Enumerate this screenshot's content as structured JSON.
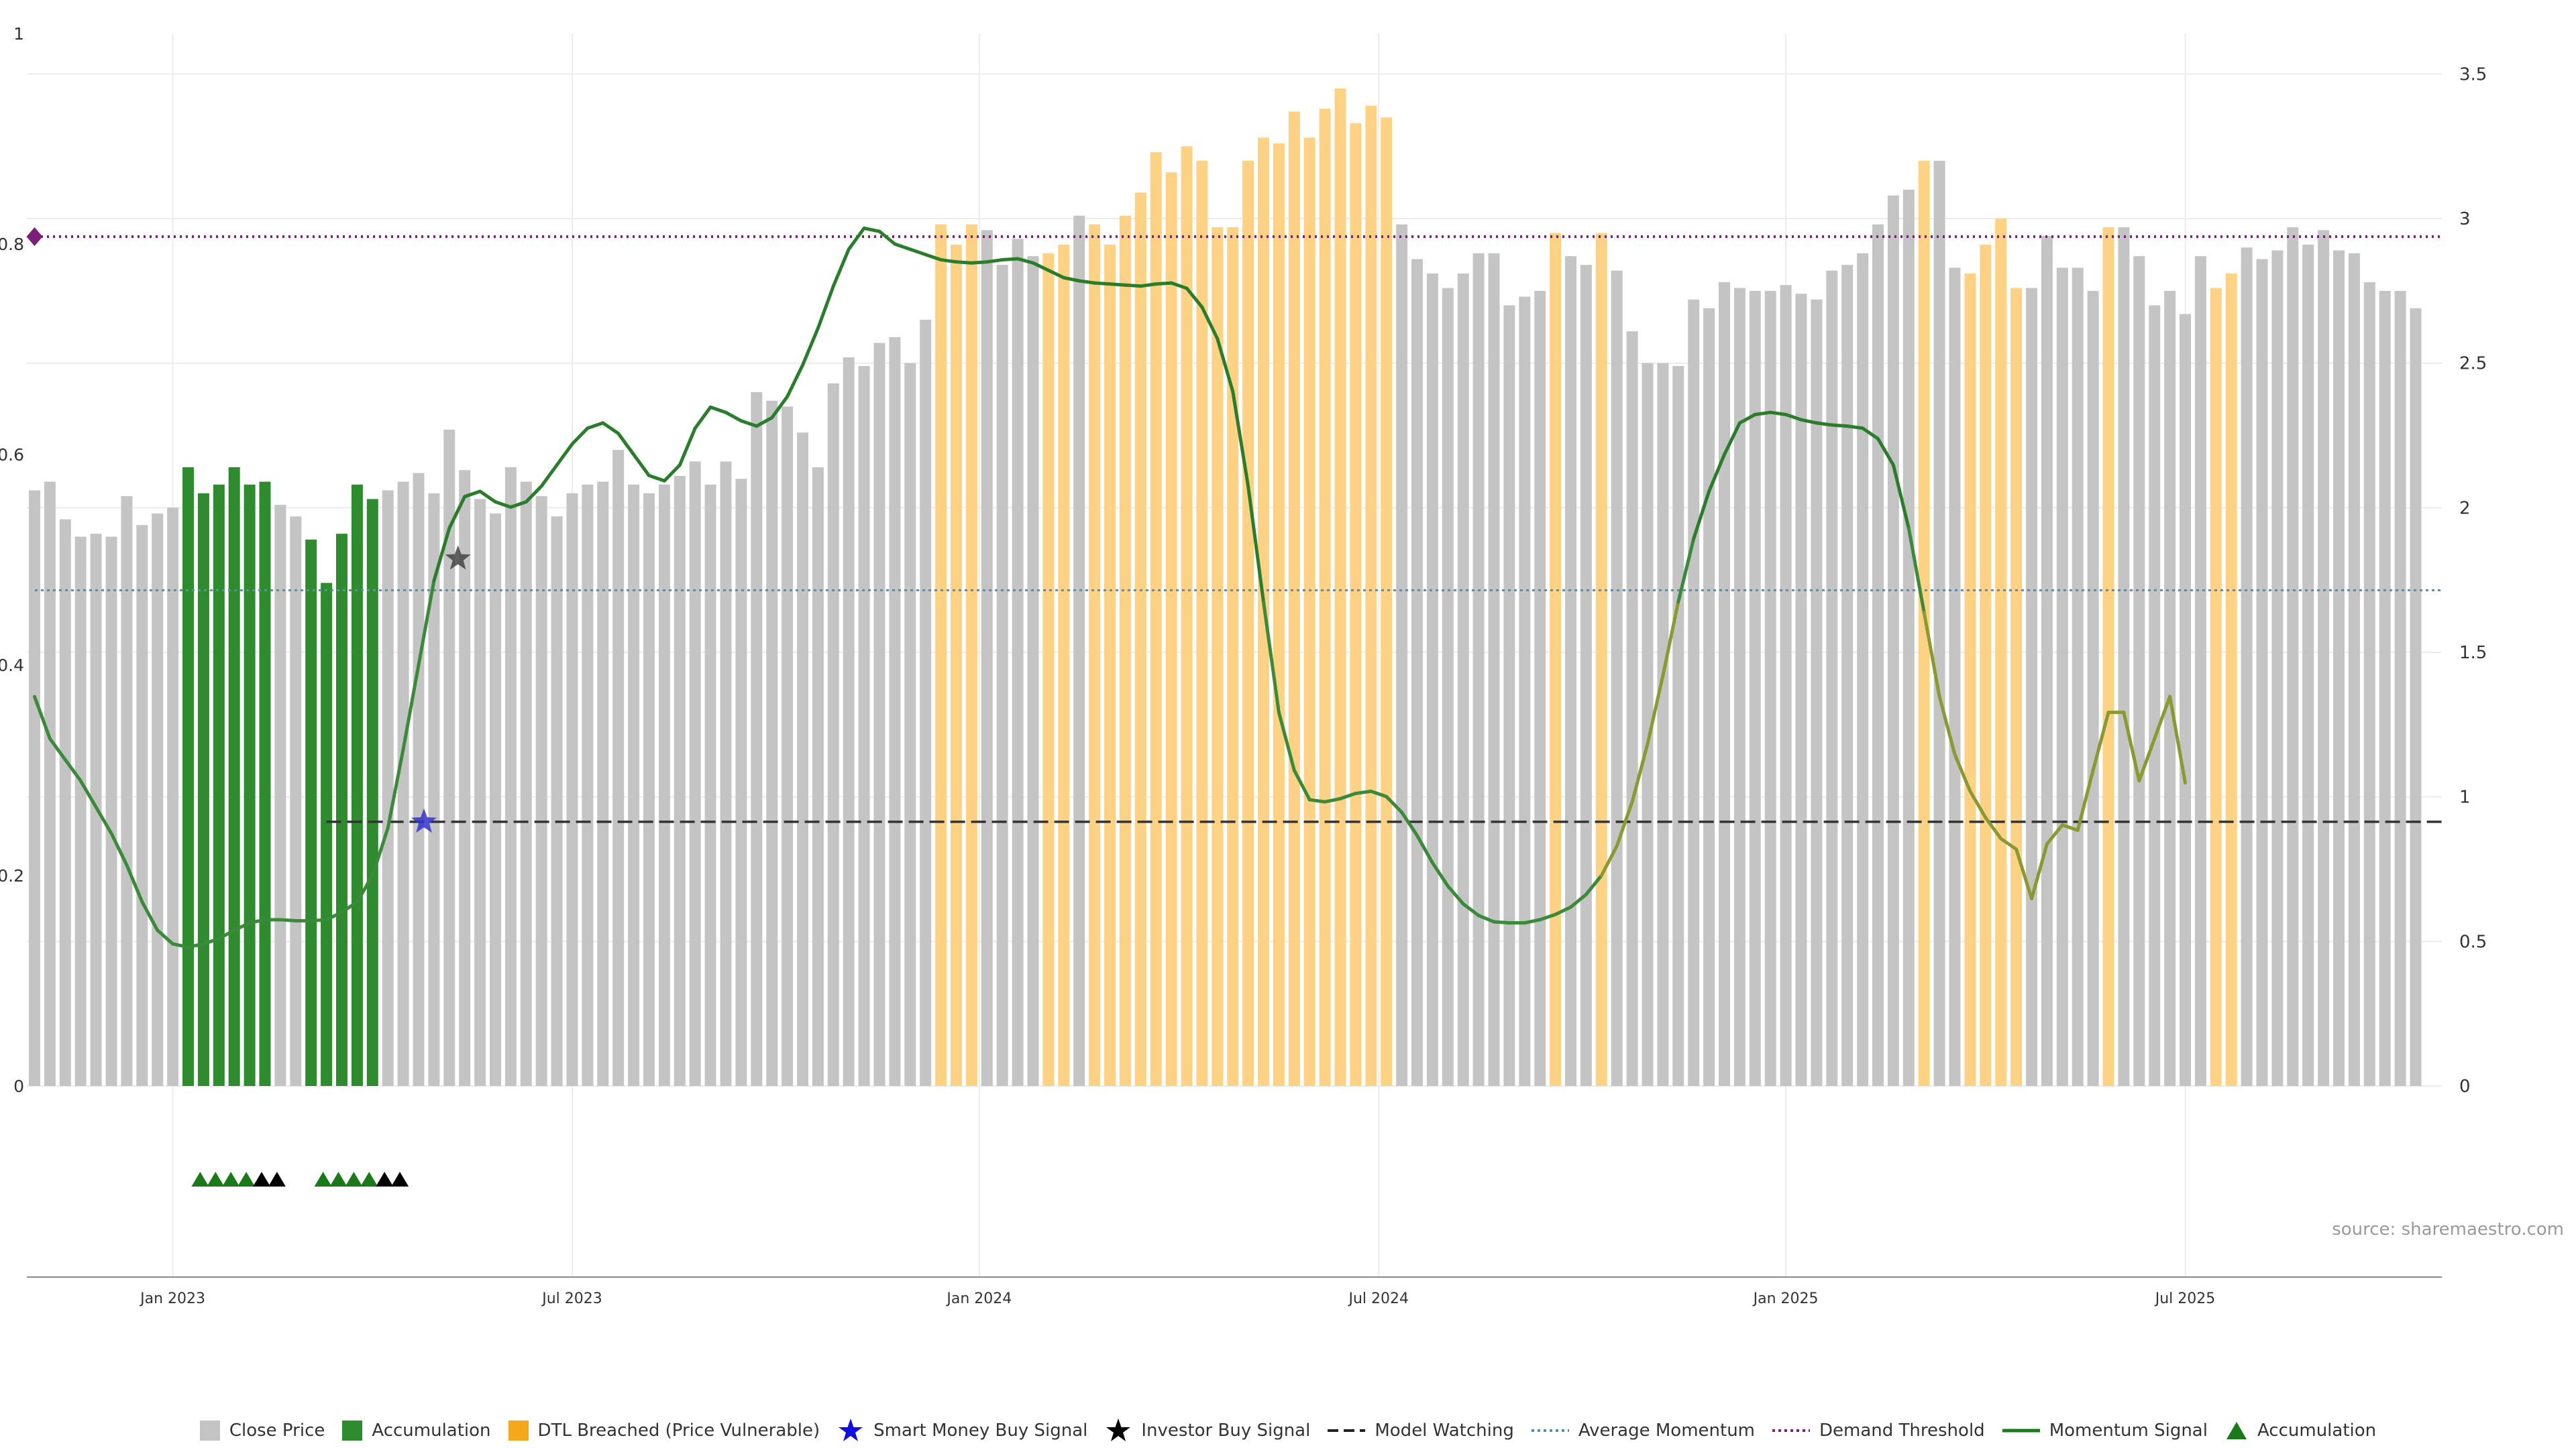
{
  "source_label": "source: sharemaestro.com",
  "chart_data": {
    "type": "bar",
    "left_axis": {
      "ticks": [
        "0",
        "0.2",
        "0.4",
        "0.6",
        "0.8",
        "1"
      ],
      "tick_values": [
        0,
        0.2,
        0.4,
        0.6,
        0.8,
        1
      ],
      "range": [
        0,
        1
      ]
    },
    "right_axis": {
      "ticks": [
        "0",
        "0.5",
        "1",
        "1.5",
        "2",
        "2.5",
        "3",
        "3.5"
      ],
      "tick_values": [
        0,
        0.5,
        1,
        1.5,
        2,
        2.5,
        3,
        3.5
      ],
      "range": [
        0,
        3.64
      ]
    },
    "x_ticks": [
      {
        "label": "Jan 2023",
        "week": 9
      },
      {
        "label": "Jul 2023",
        "week": 35
      },
      {
        "label": "Jan 2024",
        "week": 61.5
      },
      {
        "label": "Jul 2024",
        "week": 87.5
      },
      {
        "label": "Jan 2025",
        "week": 114
      },
      {
        "label": "Jul 2025",
        "week": 140
      }
    ],
    "grid": true,
    "legend_position": "bottom",
    "bar_states_key": {
      "g": "Close Price",
      "a": "Accumulation",
      "o": "DTL Breached (Price Vulnerable)"
    },
    "close_price": [
      2.06,
      2.09,
      1.96,
      1.9,
      1.91,
      1.9,
      2.04,
      1.94,
      1.98,
      2.0,
      2.14,
      2.05,
      2.08,
      2.14,
      2.08,
      2.09,
      2.01,
      1.97,
      1.89,
      1.74,
      1.91,
      2.08,
      2.03,
      2.06,
      2.09,
      2.12,
      2.05,
      2.27,
      2.13,
      2.03,
      1.98,
      2.14,
      2.09,
      2.04,
      1.97,
      2.05,
      2.08,
      2.09,
      2.2,
      2.08,
      2.05,
      2.08,
      2.11,
      2.16,
      2.08,
      2.16,
      2.1,
      2.4,
      2.37,
      2.35,
      2.26,
      2.14,
      2.43,
      2.52,
      2.49,
      2.57,
      2.59,
      2.5,
      2.65,
      2.98,
      2.91,
      2.98,
      2.96,
      2.84,
      2.93,
      2.87,
      2.88,
      2.91,
      3.01,
      2.98,
      2.91,
      3.01,
      3.09,
      3.23,
      3.16,
      3.25,
      3.2,
      2.97,
      2.97,
      3.2,
      3.28,
      3.26,
      3.37,
      3.28,
      3.38,
      3.45,
      3.33,
      3.39,
      3.35,
      2.98,
      2.86,
      2.81,
      2.76,
      2.81,
      2.88,
      2.88,
      2.7,
      2.73,
      2.75,
      2.95,
      2.87,
      2.84,
      2.95,
      2.82,
      2.61,
      2.5,
      2.5,
      2.49,
      2.72,
      2.69,
      2.78,
      2.76,
      2.75,
      2.75,
      2.77,
      2.74,
      2.72,
      2.82,
      2.84,
      2.88,
      2.98,
      3.08,
      3.1,
      3.2,
      3.2,
      2.83,
      2.81,
      2.91,
      3.0,
      2.76,
      2.76,
      2.94,
      2.83,
      2.83,
      2.75,
      2.97,
      2.97,
      2.87,
      2.7,
      2.75,
      2.67,
      2.87,
      2.76,
      2.81,
      2.9,
      2.86,
      2.89,
      2.97,
      2.91,
      2.96,
      2.89,
      2.88,
      2.78,
      2.75,
      2.75,
      2.69
    ],
    "bar_states": "ggggggggggaaaaaaggaaaaaggggggggggggggggggggggggggggggggggggoooggggoogooooooooooooooooooooggggggggggoggoggggggggggggggggggggoggoooogggggoggggggooggggggggggggoggoggggggg",
    "momentum_signal": [
      0.37,
      0.33,
      0.31,
      0.29,
      0.265,
      0.24,
      0.21,
      0.175,
      0.148,
      0.135,
      0.132,
      0.135,
      0.14,
      0.148,
      0.155,
      0.158,
      0.158,
      0.157,
      0.157,
      0.158,
      0.165,
      0.175,
      0.2,
      0.245,
      0.32,
      0.4,
      0.48,
      0.53,
      0.56,
      0.565,
      0.555,
      0.55,
      0.555,
      0.57,
      0.59,
      0.61,
      0.625,
      0.63,
      0.62,
      0.6,
      0.58,
      0.575,
      0.59,
      0.625,
      0.645,
      0.64,
      0.632,
      0.627,
      0.635,
      0.655,
      0.685,
      0.72,
      0.76,
      0.795,
      0.815,
      0.812,
      0.8,
      0.795,
      0.79,
      0.785,
      0.783,
      0.782,
      0.783,
      0.785,
      0.786,
      0.782,
      0.775,
      0.768,
      0.765,
      0.763,
      0.762,
      0.761,
      0.76,
      0.762,
      0.763,
      0.758,
      0.74,
      0.71,
      0.66,
      0.57,
      0.46,
      0.355,
      0.3,
      0.272,
      0.27,
      0.273,
      0.278,
      0.28,
      0.275,
      0.26,
      0.238,
      0.212,
      0.19,
      0.173,
      0.162,
      0.156,
      0.155,
      0.155,
      0.158,
      0.163,
      0.17,
      0.182,
      0.2,
      0.228,
      0.27,
      0.325,
      0.39,
      0.46,
      0.52,
      0.565,
      0.6,
      0.63,
      0.638,
      0.64,
      0.638,
      0.633,
      0.63,
      0.628,
      0.627,
      0.625,
      0.615,
      0.59,
      0.53,
      0.45,
      0.37,
      0.315,
      0.28,
      0.255,
      0.235,
      0.225,
      0.178,
      0.23,
      0.248,
      0.243,
      0.3,
      0.355,
      0.355,
      0.29,
      0.33,
      0.37,
      0.288
    ]
  },
  "reference_lines": {
    "demand_threshold": 0.807,
    "average_momentum": 0.471,
    "model_watching": 0.251
  },
  "signals": {
    "smart_money_buy": {
      "week": 25,
      "value": 0.251
    },
    "investor_buy": {
      "week": 28,
      "value": 0.501
    },
    "demand_marker": {
      "week": 0,
      "value": 0.807
    }
  },
  "accumulation_triangles": [
    {
      "week": 11,
      "color": "green"
    },
    {
      "week": 12,
      "color": "green"
    },
    {
      "week": 13,
      "color": "green"
    },
    {
      "week": 14,
      "color": "green"
    },
    {
      "week": 15,
      "color": "black"
    },
    {
      "week": 16,
      "color": "black"
    },
    {
      "week": 19,
      "color": "green"
    },
    {
      "week": 20,
      "color": "green"
    },
    {
      "week": 21,
      "color": "green"
    },
    {
      "week": 22,
      "color": "green"
    },
    {
      "week": 23,
      "color": "black"
    },
    {
      "week": 24,
      "color": "black"
    }
  ],
  "colors": {
    "close_price": "#c4c4c4",
    "accumulation": "#2e8b2e",
    "dtl_breached": "#fdd285",
    "dtl_legend": "#f5a81c",
    "momentum_green": "#3a8a3a",
    "momentum_olive": "#8a9a30",
    "demand_threshold": "#7a1f7a",
    "average_momentum": "#5b8db0",
    "model_watching": "#333333",
    "smart_money": "#3333cc",
    "investor": "#444444",
    "grid": "#ececec"
  },
  "legend": [
    {
      "key": "close",
      "label": "Close Price",
      "icon": "square-grey"
    },
    {
      "key": "accum",
      "label": "Accumulation",
      "icon": "square-green"
    },
    {
      "key": "dtl",
      "label": "DTL Breached (Price Vulnerable)",
      "icon": "square-orange"
    },
    {
      "key": "smart",
      "label": "Smart Money Buy Signal",
      "icon": "star-blue"
    },
    {
      "key": "investor",
      "label": "Investor Buy Signal",
      "icon": "star-black"
    },
    {
      "key": "watch",
      "label": "Model Watching",
      "icon": "dash-black"
    },
    {
      "key": "avgmom",
      "label": "Average Momentum",
      "icon": "dot-blue"
    },
    {
      "key": "demand",
      "label": "Demand Threshold",
      "icon": "dot-purple"
    },
    {
      "key": "mom",
      "label": "Momentum Signal",
      "icon": "line-green"
    },
    {
      "key": "accum_tri",
      "label": "Accumulation",
      "icon": "triangle-green"
    }
  ]
}
